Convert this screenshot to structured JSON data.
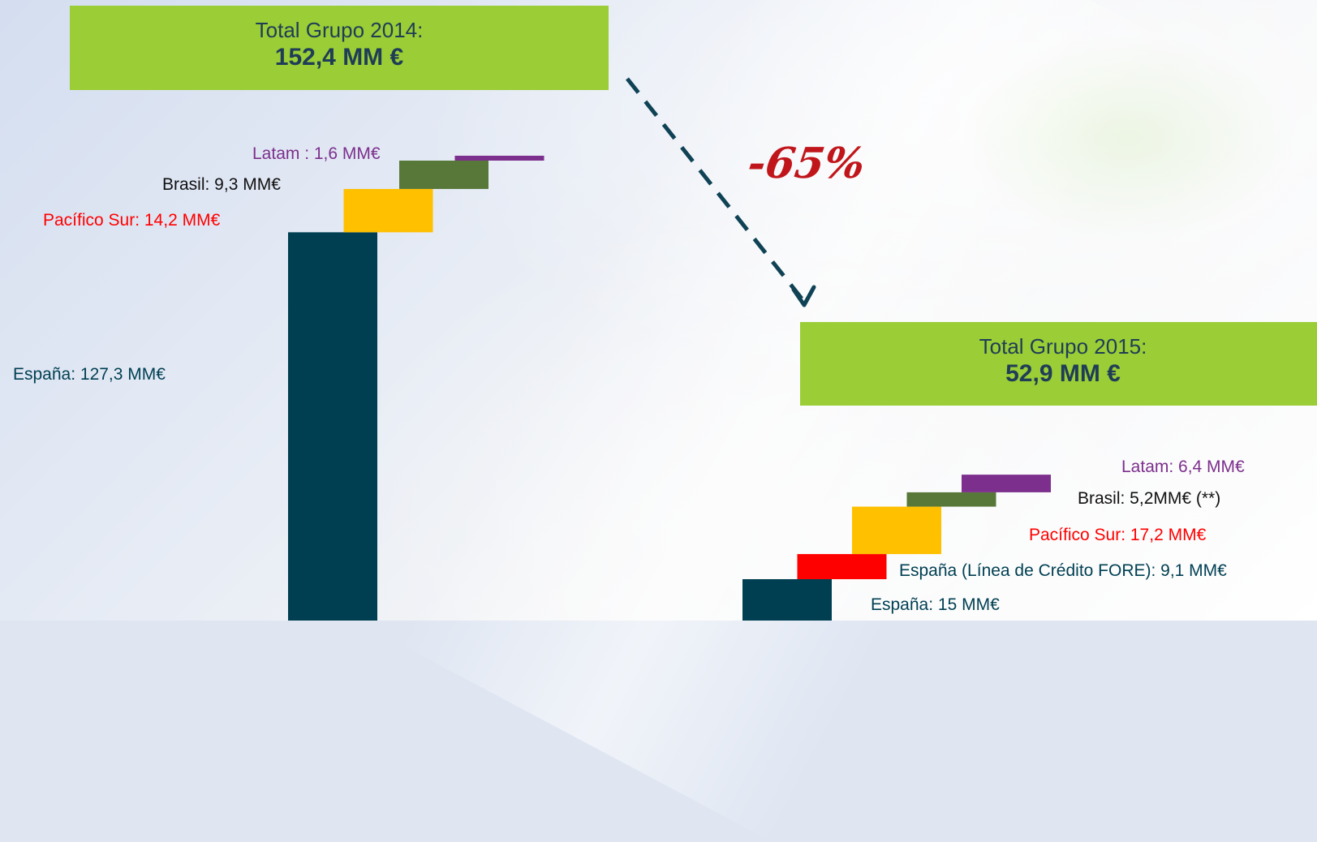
{
  "colors": {
    "espana": "#003f52",
    "espana_fore": "#ff0000",
    "pacifico_sur": "#ffc000",
    "brasil": "#58783a",
    "latam": "#7c2f8c",
    "total_box": "#9acd36",
    "total_text": "#1f3d57",
    "arrow": "#0e4254",
    "change_text": "#c0161b"
  },
  "totals": {
    "y2014": {
      "line1": "Total Grupo 2014:",
      "line2": "152,4 MM €"
    },
    "y2015": {
      "line1": "Total Grupo 2015:",
      "line2": "52,9 MM €"
    }
  },
  "change_label": "-65%",
  "chart_data": [
    {
      "type": "bar",
      "title": "Total Grupo 2014: 152,4 MM €",
      "unit": "MM€",
      "segments": [
        {
          "key": "espana",
          "label": "España: 127,3 MM€",
          "value": 127.3
        },
        {
          "key": "pacifico_sur",
          "label": "Pacífico Sur: 14,2 MM€",
          "value": 14.2
        },
        {
          "key": "brasil",
          "label": "Brasil: 9,3 MM€",
          "value": 9.3
        },
        {
          "key": "latam",
          "label": "Latam : 1,6 MM€",
          "value": 1.6
        }
      ]
    },
    {
      "type": "bar",
      "title": "Total Grupo 2015: 52,9 MM €",
      "unit": "MM€",
      "segments": [
        {
          "key": "espana",
          "label": "España: 15 MM€",
          "value": 15
        },
        {
          "key": "espana_fore",
          "label": "España (Línea de Crédito FORE): 9,1 MM€",
          "value": 9.1
        },
        {
          "key": "pacifico_sur",
          "label": "Pacífico Sur: 17,2 MM€",
          "value": 17.2
        },
        {
          "key": "brasil",
          "label": "Brasil: 5,2MM€  (**)",
          "value": 5.2
        },
        {
          "key": "latam",
          "label": "Latam: 6,4  MM€",
          "value": 6.4
        }
      ]
    }
  ]
}
